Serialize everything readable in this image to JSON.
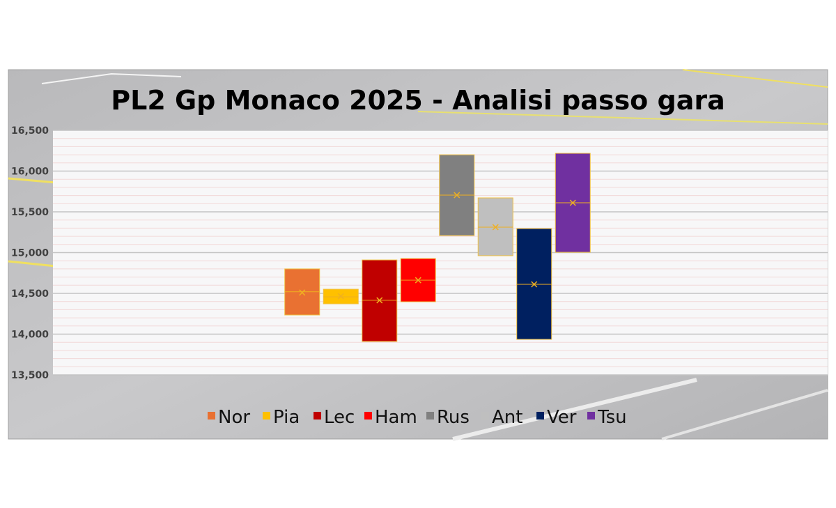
{
  "chart_data": {
    "type": "box",
    "title": "PL2 Gp Monaco 2025 - Analisi passo gara",
    "xlabel": "",
    "ylabel": "",
    "ylim": [
      13500,
      16500
    ],
    "yticks": [
      "13,500",
      "14,000",
      "14,500",
      "15,000",
      "15,500",
      "16,000",
      "16,500"
    ],
    "ytick_values": [
      13500,
      14000,
      14500,
      15000,
      15500,
      16000,
      16500
    ],
    "minor_grid_step": 100,
    "grid": true,
    "legend_position": "bottom",
    "series": [
      {
        "name": "Nor",
        "color": "#E97132",
        "q1": 14235,
        "q3": 14800,
        "median": 14520,
        "mean": 14510
      },
      {
        "name": "Pia",
        "color": "#FFC000",
        "q1": 14372,
        "q3": 14551,
        "median": 14457,
        "mean": 14465
      },
      {
        "name": "Lec",
        "color": "#C00000",
        "q1": 13910,
        "q3": 14910,
        "median": 14415,
        "mean": 14415
      },
      {
        "name": "Ham",
        "color": "#FF0000",
        "q1": 14397,
        "q3": 14927,
        "median": 14662,
        "mean": 14662
      },
      {
        "name": "Rus",
        "color": "#808080",
        "q1": 15209,
        "q3": 16200,
        "median": 15705,
        "mean": 15705
      },
      {
        "name": "Ant",
        "color": "#BFBFBF",
        "q1": 14962,
        "q3": 15671,
        "median": 15312,
        "mean": 15312
      },
      {
        "name": "Ver",
        "color": "#002060",
        "q1": 13936,
        "q3": 15295,
        "median": 14611,
        "mean": 14611
      },
      {
        "name": "Tsu",
        "color": "#7030A0",
        "q1": 15004,
        "q3": 16218,
        "median": 15611,
        "mean": 15611
      }
    ],
    "mean_marker_color": "#F0B020",
    "box_border_color": "#F0C040"
  }
}
